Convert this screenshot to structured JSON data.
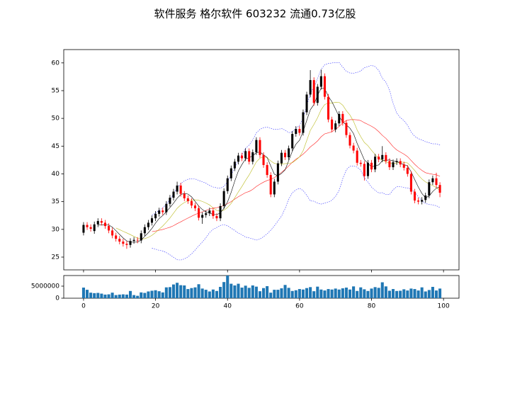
{
  "chart_data": {
    "type": "candlestick",
    "title": "软件服务 格尔软件 603232 流通0.73亿股",
    "x": [
      0,
      1,
      2,
      3,
      4,
      5,
      6,
      7,
      8,
      9,
      10,
      11,
      12,
      13,
      14,
      15,
      16,
      17,
      18,
      19,
      20,
      21,
      22,
      23,
      24,
      25,
      26,
      27,
      28,
      29,
      30,
      31,
      32,
      33,
      34,
      35,
      36,
      37,
      38,
      39,
      40,
      41,
      42,
      43,
      44,
      45,
      46,
      47,
      48,
      49,
      50,
      51,
      52,
      53,
      54,
      55,
      56,
      57,
      58,
      59,
      60,
      61,
      62,
      63,
      64,
      65,
      66,
      67,
      68,
      69,
      70,
      71,
      72,
      73,
      74,
      75,
      76,
      77,
      78,
      79,
      80,
      81,
      82,
      83,
      84,
      85,
      86,
      87,
      88,
      89,
      90,
      91,
      92,
      93,
      94,
      95,
      96,
      97,
      98,
      99
    ],
    "open": [
      29.4,
      30.8,
      30.4,
      29.7,
      30.9,
      31.5,
      31.2,
      30.6,
      29.8,
      28.9,
      28.3,
      27.8,
      27.4,
      27.2,
      27.9,
      28.1,
      28.0,
      29.3,
      30.4,
      31.2,
      32.0,
      32.8,
      33.4,
      33.1,
      34.6,
      35.7,
      36.8,
      37.9,
      36.4,
      35.6,
      35.1,
      34.3,
      33.8,
      32.1,
      32.6,
      32.9,
      33.4,
      32.4,
      32.0,
      34.2,
      36.9,
      39.2,
      41.0,
      42.2,
      43.3,
      42.8,
      44.1,
      42.2,
      43.9,
      46.1,
      43.4,
      41.6,
      39.8,
      36.3,
      38.6,
      41.9,
      43.8,
      43.0,
      44.6,
      47.2,
      48.1,
      47.4,
      51.1,
      54.3,
      56.9,
      52.8,
      55.7,
      57.6,
      53.9,
      49.8,
      48.0,
      49.1,
      50.8,
      49.2,
      47.0,
      45.1,
      44.2,
      42.0,
      41.8,
      39.6,
      42.0,
      40.8,
      43.1,
      42.6,
      43.4,
      42.3,
      41.2,
      42.1,
      42.3,
      41.7,
      41.1,
      40.0,
      36.8,
      35.2,
      35.0,
      35.3,
      36.1,
      38.5,
      39.2,
      38.0
    ],
    "high": [
      31.3,
      31.3,
      30.9,
      31.4,
      32.0,
      32.0,
      31.7,
      31.1,
      30.3,
      29.4,
      28.8,
      28.3,
      27.9,
      28.4,
      28.6,
      28.6,
      29.8,
      30.9,
      31.7,
      32.5,
      33.3,
      33.9,
      33.9,
      35.1,
      36.2,
      37.3,
      38.6,
      38.4,
      36.9,
      36.1,
      35.6,
      34.8,
      34.3,
      33.1,
      33.4,
      33.9,
      33.9,
      32.9,
      34.7,
      37.4,
      39.7,
      41.5,
      42.7,
      43.8,
      43.8,
      44.6,
      44.6,
      44.4,
      46.6,
      46.6,
      43.9,
      42.1,
      40.3,
      39.1,
      42.4,
      44.3,
      44.3,
      45.1,
      47.7,
      48.6,
      48.6,
      51.6,
      54.8,
      58.7,
      57.4,
      56.2,
      58.8,
      58.1,
      54.4,
      50.3,
      49.6,
      51.3,
      51.3,
      49.7,
      47.5,
      45.6,
      44.7,
      42.5,
      42.3,
      42.5,
      42.5,
      43.6,
      43.6,
      45.0,
      43.9,
      42.8,
      42.6,
      42.8,
      42.8,
      42.2,
      41.6,
      40.5,
      37.3,
      35.7,
      35.8,
      36.6,
      39.0,
      39.7,
      40.2,
      38.5
    ],
    "low": [
      28.9,
      29.9,
      29.6,
      29.2,
      30.4,
      30.7,
      30.1,
      29.3,
      28.4,
      27.8,
      27.3,
      26.9,
      26.5,
      26.7,
      27.4,
      27.5,
      27.5,
      28.8,
      29.9,
      30.7,
      31.5,
      32.3,
      32.6,
      32.6,
      34.1,
      35.2,
      36.3,
      35.9,
      35.1,
      34.6,
      33.8,
      33.3,
      31.6,
      31.0,
      32.1,
      32.4,
      31.9,
      31.5,
      31.5,
      33.7,
      36.4,
      38.7,
      40.5,
      41.7,
      42.3,
      42.3,
      41.7,
      41.7,
      43.4,
      42.9,
      41.1,
      39.3,
      35.8,
      35.8,
      38.1,
      41.4,
      42.5,
      42.5,
      44.1,
      46.7,
      46.9,
      46.9,
      50.6,
      53.8,
      52.3,
      52.3,
      55.2,
      53.4,
      49.3,
      47.5,
      47.5,
      48.6,
      48.7,
      46.5,
      44.6,
      43.7,
      41.5,
      41.3,
      38.8,
      39.1,
      40.3,
      40.3,
      42.1,
      42.1,
      41.8,
      40.7,
      40.7,
      41.6,
      41.2,
      40.6,
      39.5,
      36.3,
      34.7,
      34.5,
      34.5,
      34.8,
      35.6,
      38.0,
      37.5,
      35.8
    ],
    "close": [
      30.8,
      30.4,
      30.1,
      30.9,
      31.5,
      31.2,
      30.6,
      29.8,
      28.9,
      28.3,
      27.8,
      27.4,
      27.2,
      27.9,
      28.1,
      28.0,
      29.3,
      30.4,
      31.2,
      32.0,
      32.8,
      33.4,
      33.1,
      34.6,
      35.7,
      36.8,
      37.9,
      36.4,
      35.6,
      35.1,
      34.3,
      33.8,
      32.1,
      32.6,
      32.9,
      33.4,
      32.4,
      32.0,
      34.2,
      36.9,
      39.2,
      41.0,
      42.2,
      43.3,
      42.8,
      44.1,
      42.2,
      43.9,
      46.1,
      43.4,
      41.6,
      39.8,
      36.3,
      38.6,
      41.9,
      43.8,
      43.0,
      44.6,
      47.2,
      48.1,
      47.4,
      51.1,
      54.3,
      56.9,
      52.8,
      55.7,
      57.6,
      53.9,
      49.8,
      48.0,
      49.1,
      50.8,
      49.2,
      47.0,
      45.1,
      44.2,
      42.0,
      41.8,
      39.6,
      42.0,
      40.8,
      43.1,
      42.6,
      43.4,
      42.3,
      41.2,
      42.1,
      42.3,
      41.7,
      41.1,
      40.0,
      36.8,
      35.2,
      35.0,
      35.3,
      36.1,
      38.5,
      39.2,
      38.0,
      36.6
    ],
    "volume": [
      4400000,
      3500000,
      2300000,
      2100000,
      2200000,
      1900000,
      1500000,
      1600000,
      2300000,
      1300000,
      1500000,
      1600000,
      1500000,
      3000000,
      1300000,
      1000000,
      2400000,
      2200000,
      2800000,
      3100000,
      3300000,
      2900000,
      2400000,
      4500000,
      4600000,
      5700000,
      6400000,
      5400000,
      5300000,
      3800000,
      4200000,
      4500000,
      5800000,
      4000000,
      3500000,
      2800000,
      3600000,
      3000000,
      4700000,
      6700000,
      9400000,
      6000000,
      5300000,
      6000000,
      4400000,
      5200000,
      4300000,
      5300000,
      4800000,
      2900000,
      4200000,
      5000000,
      2300000,
      3500000,
      3500000,
      4100000,
      5500000,
      4300000,
      3000000,
      3300000,
      3800000,
      3600000,
      4200000,
      4600000,
      2900000,
      4800000,
      3600000,
      3200000,
      3800000,
      3600000,
      4000000,
      3600000,
      4100000,
      4400000,
      3600000,
      4900000,
      3000000,
      4500000,
      3700000,
      3000000,
      4000000,
      4600000,
      4300000,
      6600000,
      4900000,
      3100000,
      3800000,
      3000000,
      3100000,
      3700000,
      3200000,
      4000000,
      3800000,
      3200000,
      4500000,
      2800000,
      3400000,
      4700000,
      3200000,
      4000000
    ],
    "up_color": "#000000",
    "down_color": "#ff0000",
    "volume_color": "#1f77b4",
    "xlim": [
      -5.5,
      104.3
    ],
    "xticks": [
      0,
      20,
      40,
      60,
      80,
      100
    ],
    "ylim": [
      22.7,
      62.4
    ],
    "yticks": [
      25,
      30,
      35,
      40,
      45,
      50,
      55,
      60
    ],
    "volume_ylim": [
      0,
      9400000
    ],
    "volume_yticks": [
      0,
      5000000
    ]
  }
}
